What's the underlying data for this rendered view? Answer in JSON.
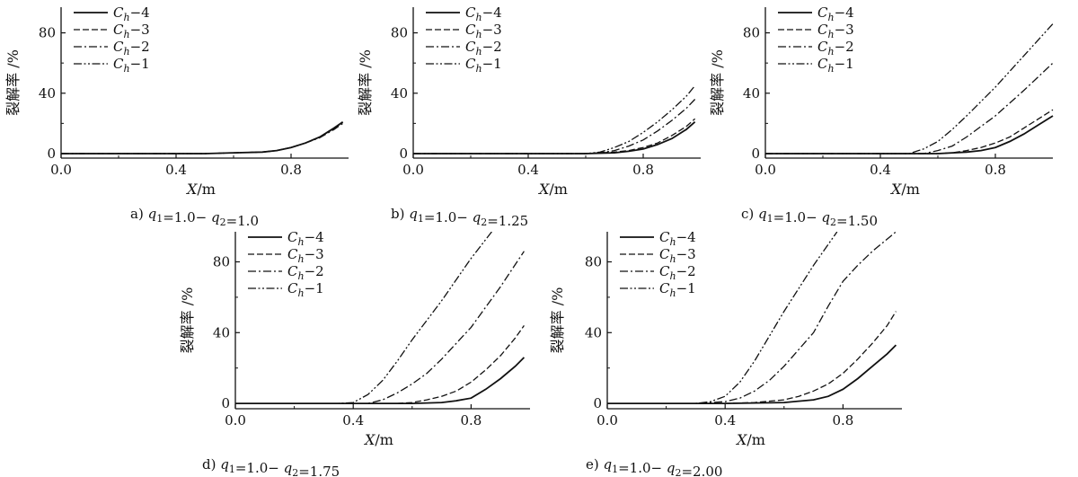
{
  "chart_data": [
    {
      "type": "line",
      "panel_label": "a)",
      "caption": "q1=1.0− q2=1.0",
      "xlabel": "X/m",
      "ylabel": "裂解率 /%",
      "xlim": [
        0.0,
        1.0
      ],
      "ylim": [
        -3,
        97
      ],
      "xticks": [
        0.0,
        0.4,
        0.8
      ],
      "yticks": [
        0,
        40,
        80
      ],
      "legend_position": "top-left",
      "series": [
        {
          "name": "Ch=4",
          "style": "solid",
          "x": [
            0.0,
            0.3,
            0.5,
            0.6,
            0.7,
            0.75,
            0.8,
            0.85,
            0.9,
            0.95,
            0.98
          ],
          "y": [
            0,
            0,
            0,
            0.5,
            1,
            2,
            4,
            7,
            11,
            17,
            21
          ]
        },
        {
          "name": "Ch=3",
          "style": "dashed",
          "x": [
            0.0,
            0.3,
            0.5,
            0.6,
            0.7,
            0.75,
            0.8,
            0.85,
            0.9,
            0.95,
            0.98
          ],
          "y": [
            0,
            0,
            0,
            0.5,
            1,
            2,
            4,
            7,
            11,
            17,
            20.5
          ]
        },
        {
          "name": "Ch=2",
          "style": "dashdot",
          "x": [
            0.0,
            0.3,
            0.5,
            0.6,
            0.7,
            0.75,
            0.8,
            0.85,
            0.9,
            0.95,
            0.98
          ],
          "y": [
            0,
            0,
            0,
            0.5,
            1,
            2,
            4,
            7,
            10.5,
            16,
            20
          ]
        },
        {
          "name": "Ch=1",
          "style": "dashdotdot",
          "x": [
            0.0,
            0.3,
            0.5,
            0.6,
            0.7,
            0.75,
            0.8,
            0.85,
            0.9,
            0.95,
            0.98
          ],
          "y": [
            0,
            0,
            0,
            0.5,
            1,
            2,
            4,
            7,
            11,
            16.5,
            21
          ]
        }
      ]
    },
    {
      "type": "line",
      "panel_label": "b)",
      "caption": "q1=1.0− q2=1.25",
      "xlabel": "X/m",
      "ylabel": "裂解率 /%",
      "xlim": [
        0.0,
        1.0
      ],
      "ylim": [
        -3,
        97
      ],
      "xticks": [
        0.0,
        0.4,
        0.8
      ],
      "yticks": [
        0,
        40,
        80
      ],
      "legend_position": "top-left",
      "series": [
        {
          "name": "Ch=4",
          "style": "solid",
          "x": [
            0.0,
            0.4,
            0.6,
            0.7,
            0.75,
            0.8,
            0.85,
            0.9,
            0.95,
            0.98
          ],
          "y": [
            0,
            0,
            0,
            0.5,
            1.5,
            3,
            6,
            10,
            16,
            21
          ]
        },
        {
          "name": "Ch=3",
          "style": "dashed",
          "x": [
            0.0,
            0.4,
            0.6,
            0.7,
            0.75,
            0.8,
            0.85,
            0.9,
            0.95,
            0.98
          ],
          "y": [
            0,
            0,
            0,
            1,
            2,
            4,
            7,
            12,
            18,
            23
          ]
        },
        {
          "name": "Ch=2",
          "style": "dashdot",
          "x": [
            0.0,
            0.4,
            0.6,
            0.65,
            0.7,
            0.75,
            0.8,
            0.85,
            0.9,
            0.95,
            0.98
          ],
          "y": [
            0,
            0,
            0,
            0.5,
            2,
            5,
            9,
            15,
            22,
            30,
            36
          ]
        },
        {
          "name": "Ch=1",
          "style": "dashdotdot",
          "x": [
            0.0,
            0.4,
            0.6,
            0.65,
            0.7,
            0.75,
            0.8,
            0.85,
            0.9,
            0.95,
            0.98
          ],
          "y": [
            0,
            0,
            0,
            1,
            4,
            8,
            14,
            21,
            29,
            38,
            45
          ]
        }
      ]
    },
    {
      "type": "line",
      "panel_label": "c)",
      "caption": "q1=1.0− q2=1.50",
      "xlabel": "X/m",
      "ylabel": "裂解率 /%",
      "xlim": [
        0.0,
        1.0
      ],
      "ylim": [
        -3,
        97
      ],
      "xticks": [
        0.0,
        0.4,
        0.8
      ],
      "yticks": [
        0,
        40,
        80
      ],
      "legend_position": "top-left",
      "series": [
        {
          "name": "Ch=4",
          "style": "solid",
          "x": [
            0.0,
            0.4,
            0.6,
            0.7,
            0.75,
            0.8,
            0.85,
            0.9,
            0.95,
            1.0
          ],
          "y": [
            0,
            0,
            0,
            1,
            2,
            4,
            8,
            13,
            19,
            25
          ]
        },
        {
          "name": "Ch=3",
          "style": "dashed",
          "x": [
            0.0,
            0.4,
            0.6,
            0.65,
            0.7,
            0.75,
            0.8,
            0.85,
            0.9,
            0.95,
            1.0
          ],
          "y": [
            0,
            0,
            0,
            0.5,
            2,
            4,
            7,
            11,
            17,
            23,
            29
          ]
        },
        {
          "name": "Ch=2",
          "style": "dashdot",
          "x": [
            0.0,
            0.4,
            0.55,
            0.6,
            0.65,
            0.7,
            0.8,
            0.9,
            1.0
          ],
          "y": [
            0,
            0,
            0,
            2,
            5,
            11,
            25,
            42,
            60
          ]
        },
        {
          "name": "Ch=1",
          "style": "dashdotdot",
          "x": [
            0.0,
            0.4,
            0.5,
            0.55,
            0.6,
            0.65,
            0.7,
            0.8,
            0.9,
            1.0
          ],
          "y": [
            0,
            0,
            0,
            3,
            8,
            16,
            25,
            44,
            65,
            86
          ]
        }
      ]
    },
    {
      "type": "line",
      "panel_label": "d)",
      "caption": "q1=1.0− q2=1.75",
      "xlabel": "X/m",
      "ylabel": "裂解率 /%",
      "xlim": [
        0.0,
        1.0
      ],
      "ylim": [
        -3,
        97
      ],
      "xticks": [
        0.0,
        0.4,
        0.8
      ],
      "yticks": [
        0,
        40,
        80
      ],
      "legend_position": "top-left",
      "series": [
        {
          "name": "Ch=4",
          "style": "solid",
          "x": [
            0.0,
            0.4,
            0.6,
            0.7,
            0.75,
            0.8,
            0.85,
            0.9,
            0.95,
            0.98
          ],
          "y": [
            0,
            0,
            0,
            0.5,
            1.5,
            3,
            8,
            14,
            21,
            26
          ]
        },
        {
          "name": "Ch=3",
          "style": "dashed",
          "x": [
            0.0,
            0.4,
            0.55,
            0.6,
            0.65,
            0.7,
            0.75,
            0.8,
            0.85,
            0.9,
            0.95,
            0.98
          ],
          "y": [
            0,
            0,
            0,
            0.5,
            2,
            4,
            7,
            12,
            19,
            27,
            37,
            44
          ]
        },
        {
          "name": "Ch=2",
          "style": "dashdot",
          "x": [
            0.0,
            0.4,
            0.45,
            0.5,
            0.55,
            0.6,
            0.65,
            0.7,
            0.8,
            0.9,
            0.98
          ],
          "y": [
            0,
            0,
            0,
            2,
            6,
            11,
            17,
            25,
            43,
            66,
            86
          ]
        },
        {
          "name": "Ch=1",
          "style": "dashdotdot",
          "x": [
            0.0,
            0.35,
            0.4,
            0.45,
            0.5,
            0.55,
            0.6,
            0.7,
            0.8,
            0.87
          ],
          "y": [
            0,
            0,
            0.5,
            5,
            13,
            24,
            36,
            58,
            82,
            97
          ]
        }
      ]
    },
    {
      "type": "line",
      "panel_label": "e)",
      "caption": "q1=1.0− q2=2.00",
      "xlabel": "X/m",
      "ylabel": "裂解率 /%",
      "xlim": [
        0.0,
        1.0
      ],
      "ylim": [
        -3,
        97
      ],
      "xticks": [
        0.0,
        0.4,
        0.8
      ],
      "yticks": [
        0,
        40,
        80
      ],
      "legend_position": "top-left",
      "series": [
        {
          "name": "Ch=4",
          "style": "solid",
          "x": [
            0.0,
            0.4,
            0.6,
            0.7,
            0.75,
            0.8,
            0.85,
            0.9,
            0.95,
            0.98
          ],
          "y": [
            0,
            0,
            0.5,
            2,
            4,
            8,
            14,
            21,
            28,
            33
          ]
        },
        {
          "name": "Ch=3",
          "style": "dashed",
          "x": [
            0.0,
            0.4,
            0.5,
            0.6,
            0.65,
            0.7,
            0.75,
            0.8,
            0.85,
            0.9,
            0.95,
            0.98
          ],
          "y": [
            0,
            0,
            0.5,
            2,
            4,
            7,
            11,
            17,
            25,
            34,
            44,
            52
          ]
        },
        {
          "name": "Ch=2",
          "style": "dashdot",
          "x": [
            0.0,
            0.3,
            0.4,
            0.45,
            0.5,
            0.55,
            0.6,
            0.7,
            0.75,
            0.8,
            0.85,
            0.9,
            0.98
          ],
          "y": [
            0,
            0,
            1,
            3,
            7,
            13,
            21,
            40,
            55,
            69,
            78,
            86,
            97
          ]
        },
        {
          "name": "Ch=1",
          "style": "dashdotdot",
          "x": [
            0.0,
            0.3,
            0.35,
            0.4,
            0.45,
            0.5,
            0.55,
            0.6,
            0.7,
            0.78
          ],
          "y": [
            0,
            0,
            1,
            4,
            12,
            24,
            38,
            52,
            78,
            97
          ]
        }
      ]
    }
  ]
}
